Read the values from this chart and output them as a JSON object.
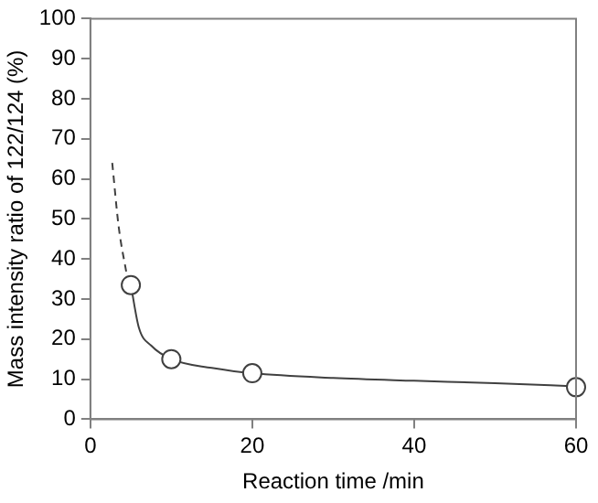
{
  "chart_data": {
    "type": "scatter",
    "xlabel": "Reaction time /min",
    "ylabel": "Mass intensity ratio of 122/124 (%)",
    "xlim": [
      0,
      60
    ],
    "xticks": [
      0,
      20,
      40,
      60
    ],
    "ylim": [
      0,
      100
    ],
    "yticks": [
      0,
      10,
      20,
      30,
      40,
      50,
      60,
      70,
      80,
      90,
      100
    ],
    "grid": false,
    "legend": false,
    "series": [
      {
        "type": "line",
        "line_style": "dashed",
        "marker": "none",
        "color": "#404040",
        "x": [
          2.7,
          3.5,
          4.5
        ],
        "values": [
          64,
          48,
          36
        ]
      },
      {
        "type": "line",
        "line_style": "solid",
        "marker": "none",
        "color": "#404040",
        "x": [
          5,
          6,
          7.5,
          10,
          15,
          20,
          30,
          40,
          50,
          60
        ],
        "values": [
          33.5,
          22.8,
          18.4,
          15,
          12.8,
          11.5,
          10.3,
          9.6,
          9,
          8.2
        ]
      },
      {
        "marker": "circle",
        "color": "#404040",
        "x": [
          5,
          10,
          20,
          60
        ],
        "values": [
          33.5,
          15,
          11.5,
          8
        ]
      }
    ]
  }
}
